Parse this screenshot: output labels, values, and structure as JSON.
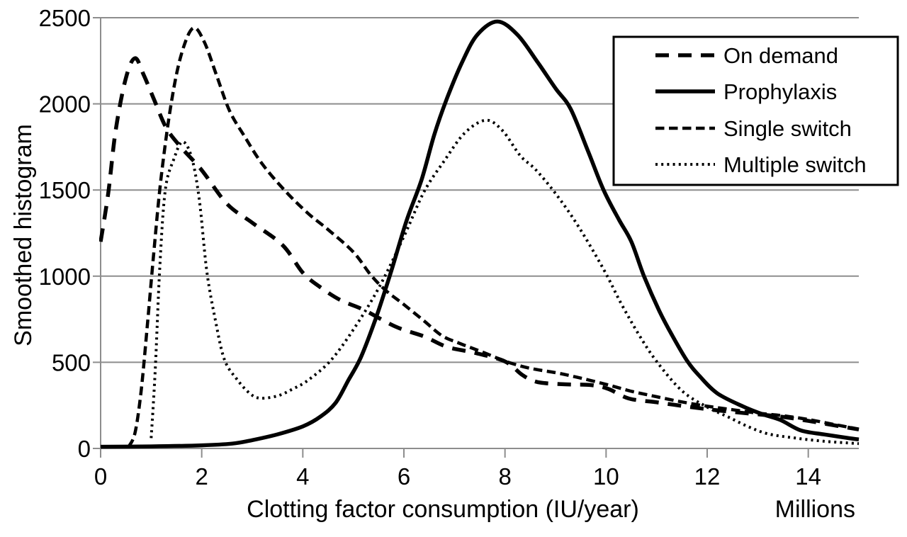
{
  "figure": {
    "background": "#ffffff",
    "text_color": "#000000",
    "grid_color": "#8d8d8d",
    "curve_color": "#000000"
  },
  "chart_data": {
    "type": "line",
    "title": "",
    "xlabel": "Clotting factor consumption (IU/year)",
    "x_unit_label": "Millions",
    "ylabel": "Smoothed histogram",
    "xlim": [
      0,
      15
    ],
    "ylim": [
      0,
      2500
    ],
    "x_ticks": [
      "0",
      "2",
      "4",
      "6",
      "8",
      "10",
      "12",
      "14"
    ],
    "x_tick_values": [
      0,
      2,
      4,
      6,
      8,
      10,
      12,
      14
    ],
    "y_ticks": [
      "0",
      "500",
      "1000",
      "1500",
      "2000",
      "2500"
    ],
    "y_tick_values": [
      0,
      500,
      1000,
      1500,
      2000,
      2500
    ],
    "grid": "horizontal",
    "legend_position": "top-right",
    "series": [
      {
        "name": "On demand",
        "style": "long-dash",
        "color": "#000000",
        "points": [
          [
            0,
            1200
          ],
          [
            0.15,
            1480
          ],
          [
            0.3,
            1850
          ],
          [
            0.5,
            2150
          ],
          [
            0.68,
            2265
          ],
          [
            0.85,
            2170
          ],
          [
            1.05,
            2030
          ],
          [
            1.3,
            1860
          ],
          [
            1.6,
            1745
          ],
          [
            2,
            1615
          ],
          [
            2.5,
            1420
          ],
          [
            3,
            1310
          ],
          [
            3.6,
            1180
          ],
          [
            4,
            1020
          ],
          [
            4.35,
            935
          ],
          [
            4.75,
            860
          ],
          [
            5.2,
            805
          ],
          [
            5.85,
            705
          ],
          [
            6.4,
            650
          ],
          [
            6.85,
            590
          ],
          [
            7.4,
            555
          ],
          [
            8,
            505
          ],
          [
            8.35,
            425
          ],
          [
            8.65,
            385
          ],
          [
            9.2,
            372
          ],
          [
            9.7,
            368
          ],
          [
            10.05,
            345
          ],
          [
            10.45,
            290
          ],
          [
            11,
            268
          ],
          [
            11.5,
            247
          ],
          [
            12,
            228
          ],
          [
            12.5,
            212
          ],
          [
            13,
            198
          ],
          [
            13.5,
            183
          ],
          [
            14,
            160
          ],
          [
            14.5,
            135
          ],
          [
            15,
            110
          ]
        ]
      },
      {
        "name": "Prophylaxis",
        "style": "solid",
        "color": "#000000",
        "points": [
          [
            0,
            10
          ],
          [
            1,
            12
          ],
          [
            2,
            18
          ],
          [
            2.6,
            28
          ],
          [
            3,
            48
          ],
          [
            3.5,
            82
          ],
          [
            4,
            128
          ],
          [
            4.35,
            185
          ],
          [
            4.65,
            265
          ],
          [
            4.9,
            395
          ],
          [
            5.15,
            530
          ],
          [
            5.45,
            760
          ],
          [
            5.75,
            1030
          ],
          [
            6.05,
            1320
          ],
          [
            6.35,
            1560
          ],
          [
            6.6,
            1820
          ],
          [
            6.85,
            2030
          ],
          [
            7.15,
            2240
          ],
          [
            7.45,
            2400
          ],
          [
            7.85,
            2478
          ],
          [
            8.25,
            2400
          ],
          [
            8.65,
            2240
          ],
          [
            9,
            2090
          ],
          [
            9.3,
            1970
          ],
          [
            9.65,
            1720
          ],
          [
            9.95,
            1500
          ],
          [
            10.25,
            1330
          ],
          [
            10.5,
            1200
          ],
          [
            10.75,
            1000
          ],
          [
            11.05,
            800
          ],
          [
            11.3,
            660
          ],
          [
            11.6,
            510
          ],
          [
            11.85,
            420
          ],
          [
            12.2,
            320
          ],
          [
            12.7,
            245
          ],
          [
            13.1,
            198
          ],
          [
            13.45,
            165
          ],
          [
            13.85,
            105
          ],
          [
            14.3,
            82
          ],
          [
            14.7,
            64
          ],
          [
            15,
            52
          ]
        ]
      },
      {
        "name": "Single switch",
        "style": "short-dash",
        "color": "#000000",
        "points": [
          [
            0.55,
            8
          ],
          [
            0.68,
            90
          ],
          [
            0.8,
            330
          ],
          [
            0.92,
            700
          ],
          [
            1.05,
            1130
          ],
          [
            1.2,
            1580
          ],
          [
            1.4,
            2010
          ],
          [
            1.6,
            2290
          ],
          [
            1.83,
            2440
          ],
          [
            2.05,
            2360
          ],
          [
            2.3,
            2160
          ],
          [
            2.55,
            1960
          ],
          [
            2.85,
            1810
          ],
          [
            3.2,
            1650
          ],
          [
            3.65,
            1495
          ],
          [
            4.1,
            1365
          ],
          [
            4.5,
            1270
          ],
          [
            5,
            1140
          ],
          [
            5.35,
            1005
          ],
          [
            5.65,
            915
          ],
          [
            6,
            835
          ],
          [
            6.4,
            740
          ],
          [
            6.75,
            655
          ],
          [
            7.1,
            610
          ],
          [
            7.55,
            560
          ],
          [
            8.05,
            502
          ],
          [
            8.5,
            465
          ],
          [
            9,
            440
          ],
          [
            9.4,
            415
          ],
          [
            10,
            372
          ],
          [
            10.5,
            332
          ],
          [
            11,
            300
          ],
          [
            11.5,
            270
          ],
          [
            12,
            245
          ],
          [
            12.5,
            225
          ],
          [
            13,
            205
          ],
          [
            13.5,
            190
          ],
          [
            14,
            168
          ],
          [
            14.5,
            140
          ],
          [
            15,
            112
          ]
        ]
      },
      {
        "name": "Multiple switch",
        "style": "dotted",
        "color": "#000000",
        "points": [
          [
            1,
            60
          ],
          [
            1.08,
            450
          ],
          [
            1.17,
            1050
          ],
          [
            1.28,
            1500
          ],
          [
            1.45,
            1680
          ],
          [
            1.62,
            1780
          ],
          [
            1.8,
            1690
          ],
          [
            1.95,
            1450
          ],
          [
            2.1,
            1030
          ],
          [
            2.27,
            745
          ],
          [
            2.45,
            515
          ],
          [
            2.7,
            400
          ],
          [
            2.95,
            320
          ],
          [
            3.15,
            292
          ],
          [
            3.5,
            305
          ],
          [
            3.8,
            345
          ],
          [
            4.1,
            395
          ],
          [
            4.55,
            510
          ],
          [
            5,
            690
          ],
          [
            5.5,
            930
          ],
          [
            6,
            1230
          ],
          [
            6.4,
            1490
          ],
          [
            6.8,
            1670
          ],
          [
            7.2,
            1830
          ],
          [
            7.62,
            1905
          ],
          [
            7.95,
            1845
          ],
          [
            8.3,
            1700
          ],
          [
            8.6,
            1620
          ],
          [
            9,
            1480
          ],
          [
            9.45,
            1290
          ],
          [
            9.95,
            1040
          ],
          [
            10.3,
            840
          ],
          [
            10.65,
            660
          ],
          [
            11,
            505
          ],
          [
            11.5,
            335
          ],
          [
            12,
            240
          ],
          [
            12.4,
            185
          ],
          [
            12.8,
            128
          ],
          [
            13.2,
            85
          ],
          [
            13.7,
            62
          ],
          [
            14.3,
            42
          ],
          [
            15,
            28
          ]
        ]
      }
    ]
  }
}
